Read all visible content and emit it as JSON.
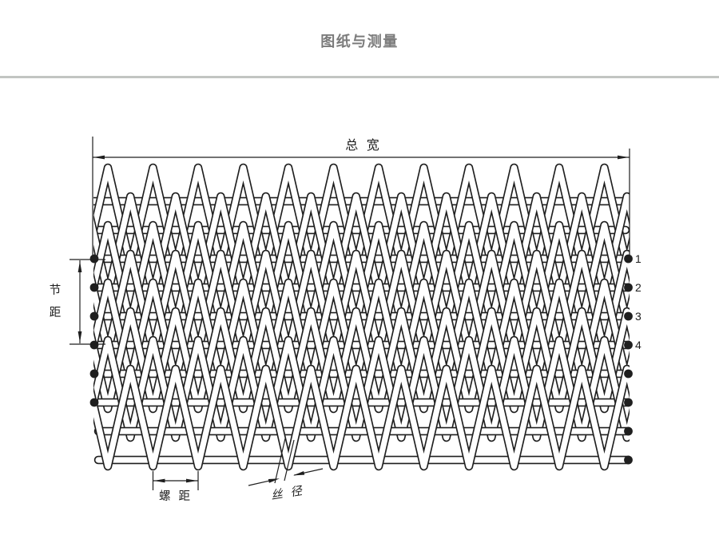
{
  "page": {
    "title": "图纸与测量",
    "title_color": "#7b7b7b",
    "divider_color": "#c2c5c2",
    "background": "#ffffff"
  },
  "diagram": {
    "line_color": "#1f1f1f",
    "wire_fill": "#ffffff",
    "labels": {
      "total_width": "总 宽",
      "pitch_chars": [
        "节",
        "距"
      ],
      "spiral_pitch": "螺 距",
      "wire_diameter": "丝 径",
      "rod_numbers": [
        "1",
        "2",
        "3",
        "4"
      ]
    }
  }
}
